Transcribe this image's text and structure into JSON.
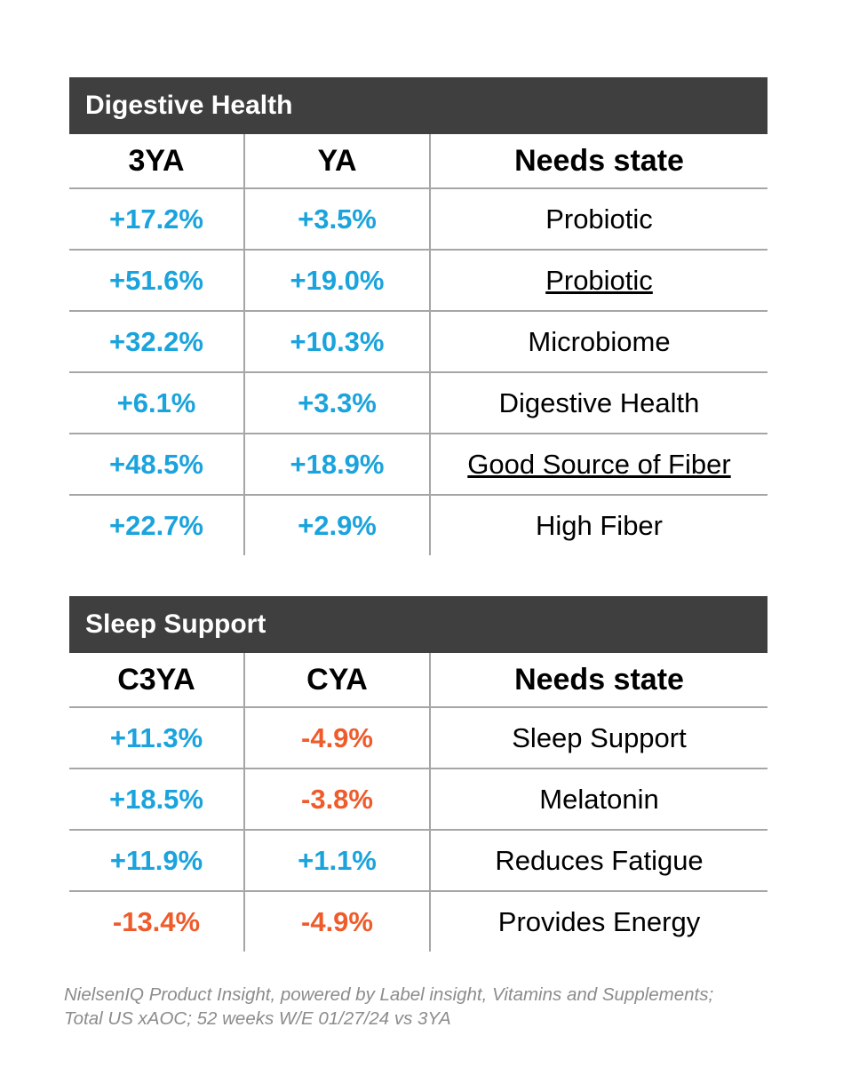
{
  "colors": {
    "header_bg": "#3f3f3f",
    "positive": "#1aa3dc",
    "negative": "#ef5b2a",
    "grid": "#a6a6a6",
    "footnote": "#8c8c8c"
  },
  "digestive": {
    "title": "Digestive Health",
    "headers": [
      "3YA",
      "YA",
      "Needs state"
    ],
    "rows": [
      {
        "c3ya": "+17.2%",
        "cya": "+3.5%",
        "need": "Probiotic"
      },
      {
        "c3ya": "+51.6%",
        "cya": "+19.0%",
        "need": "Probiotic"
      },
      {
        "c3ya": "+32.2%",
        "cya": "+10.3%",
        "need": "Microbiome"
      },
      {
        "c3ya": "+6.1%",
        "cya": "+3.3%",
        "need": "Digestive Health"
      },
      {
        "c3ya": "+48.5%",
        "cya": "+18.9%",
        "need": "Good Source of Fiber"
      },
      {
        "c3ya": "+22.7%",
        "cya": "+2.9%",
        "need": "High Fiber"
      }
    ]
  },
  "sleep": {
    "title": "Sleep Support",
    "headers": [
      "C3YA",
      "CYA",
      "Needs state"
    ],
    "rows": [
      {
        "c3ya": "+11.3%",
        "cya": "-4.9%",
        "need": "Sleep Support"
      },
      {
        "c3ya": "+18.5%",
        "cya": "-3.8%",
        "need": "Melatonin"
      },
      {
        "c3ya": "+11.9%",
        "cya": "+1.1%",
        "need": "Reduces Fatigue"
      },
      {
        "c3ya": "-13.4%",
        "cya": "-4.9%",
        "need": "Provides Energy"
      }
    ]
  },
  "footnote": {
    "line1": "NielsenIQ Product Insight, powered by Label insight, Vitamins and Supplements;",
    "line2": "Total US xAOC; 52 weeks W/E 01/27/24 vs 3YA"
  }
}
